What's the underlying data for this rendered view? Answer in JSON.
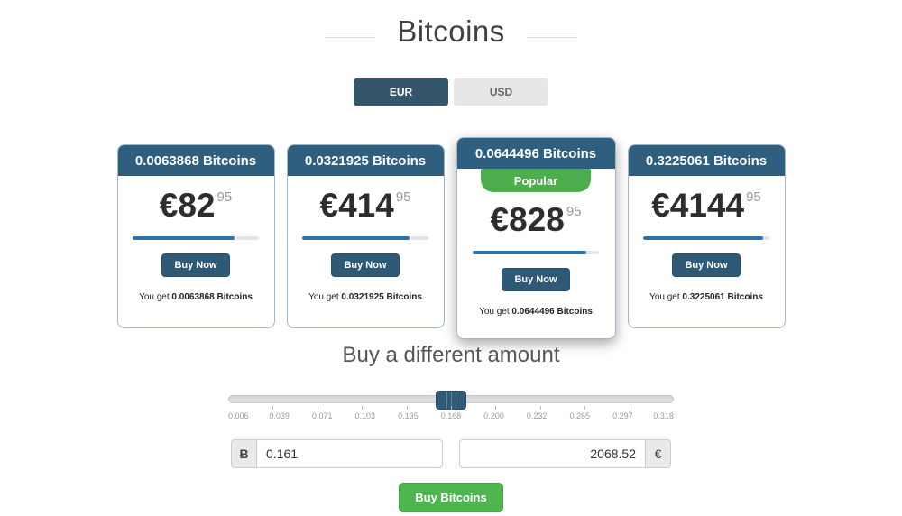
{
  "page": {
    "title": "Bitcoins",
    "amount_heading": "Buy a different amount"
  },
  "currency_toggle": {
    "eur_label": "EUR",
    "usd_label": "USD",
    "selected": "EUR"
  },
  "cards": [
    {
      "header": "0.0063868 Bitcoins",
      "currency_symbol": "€",
      "price_whole": "82",
      "price_cents": "95",
      "progress_pct": 81,
      "buy_label": "Buy Now",
      "you_get_prefix": "You get ",
      "you_get_bold": "0.0063868 Bitcoins"
    },
    {
      "header": "0.0321925 Bitcoins",
      "currency_symbol": "€",
      "price_whole": "414",
      "price_cents": "95",
      "progress_pct": 85,
      "buy_label": "Buy Now",
      "you_get_prefix": "You get ",
      "you_get_bold": "0.0321925 Bitcoins"
    },
    {
      "header": "0.0644496 Bitcoins",
      "badge": "Popular",
      "currency_symbol": "€",
      "price_whole": "828",
      "price_cents": "95",
      "progress_pct": 90,
      "buy_label": "Buy Now",
      "you_get_prefix": "You get ",
      "you_get_bold": "0.0644496 Bitcoins"
    },
    {
      "header": "0.3225061 Bitcoins",
      "currency_symbol": "€",
      "price_whole": "4144",
      "price_cents": "95",
      "progress_pct": 95,
      "buy_label": "Buy Now",
      "you_get_prefix": "You get ",
      "you_get_bold": "0.3225061 Bitcoins"
    }
  ],
  "slider": {
    "handle_pct": 50,
    "tick_labels": [
      "0.006",
      "0.039",
      "0.071",
      "0.103",
      "0.135",
      "0.168",
      "0.200",
      "0.232",
      "0.265",
      "0.297",
      "0.318"
    ]
  },
  "inputs": {
    "btc_symbol": "Ƀ",
    "btc_value": "0.161",
    "eur_value": "2068.52",
    "eur_symbol": "€"
  },
  "buy_button_label": "Buy Bitcoins",
  "colors": {
    "header_blue": "#2f5f7f",
    "button_blue": "#2e5a78",
    "toggle_blue": "#34566a",
    "progress_blue": "#2e74ab",
    "popular_green": "#4cae4c",
    "buy_green": "#4fb54f",
    "card_border": "#9db9cb"
  }
}
